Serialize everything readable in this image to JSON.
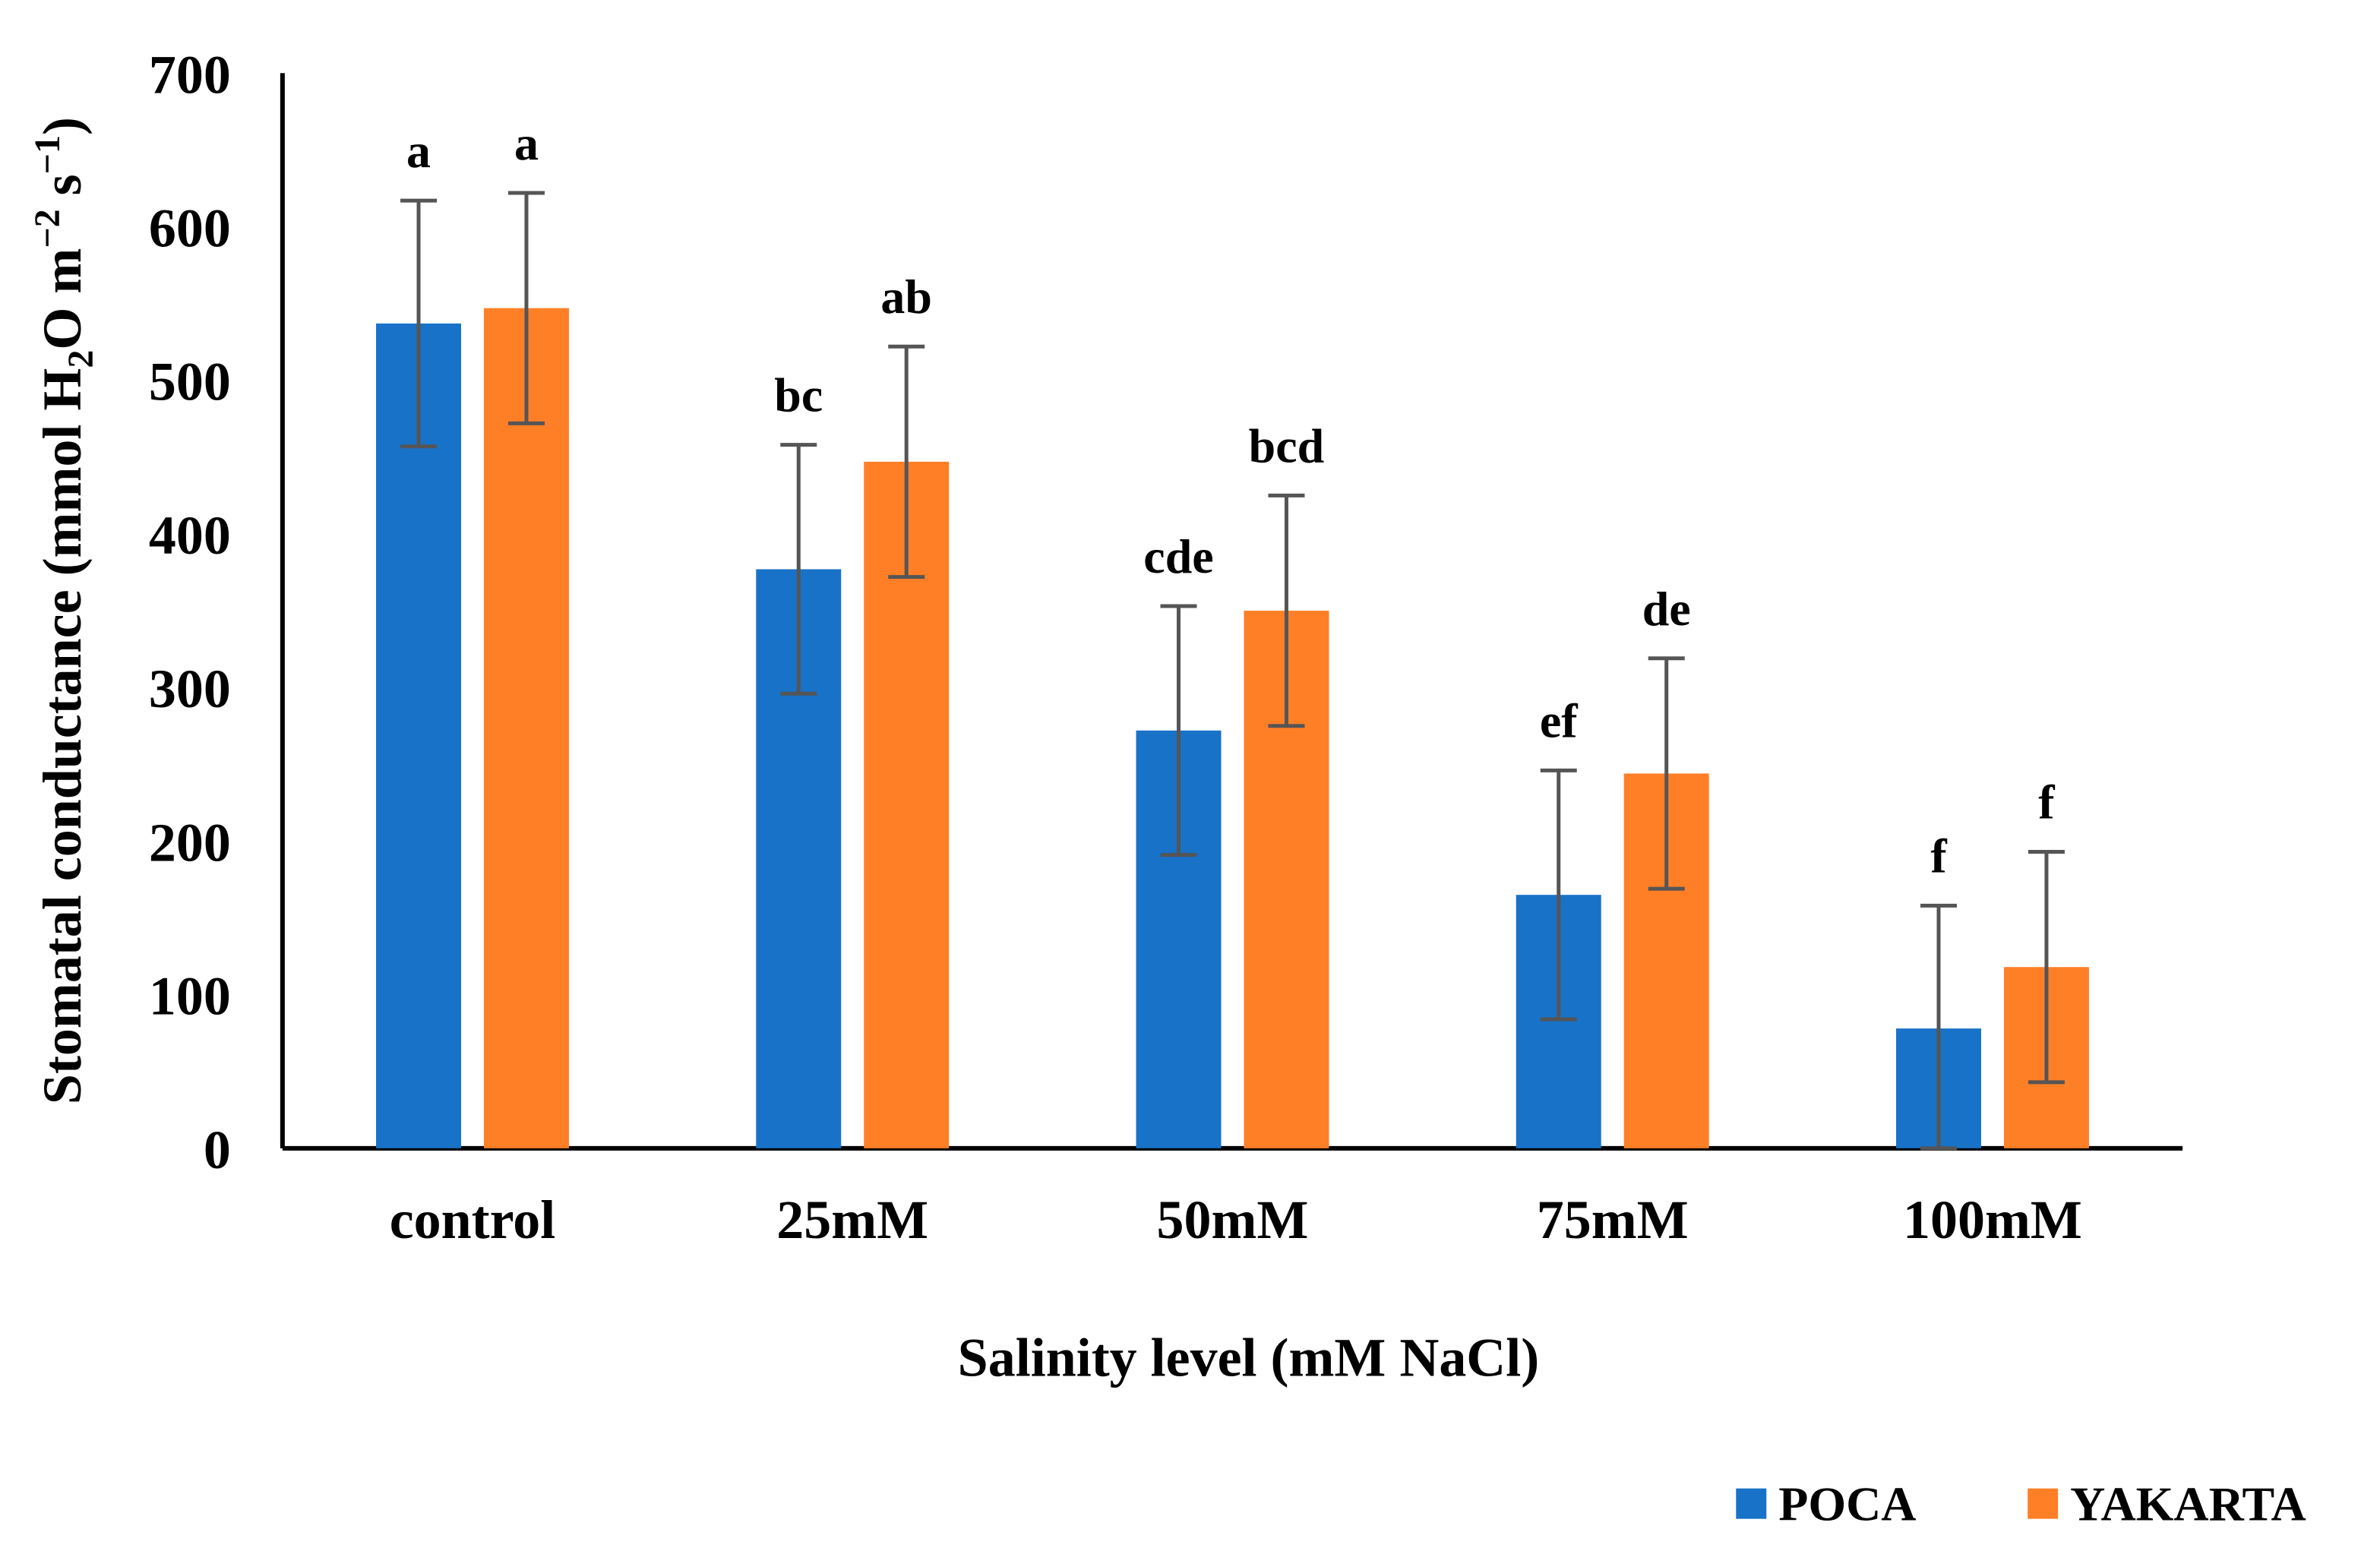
{
  "chart_data": {
    "type": "bar",
    "title": "",
    "xlabel": "Salinity level (mM NaCl)",
    "ylabel": "Stomatal conductance (mmol H2O m−2 s−1)",
    "ylabel_parts": {
      "main": "Stomatal conductance (mmol H",
      "sub": "2",
      "mid": "O m",
      "sup1": "−2",
      "mid2": " s",
      "sup2": "−1",
      "end": ")"
    },
    "ylim": [
      0,
      700
    ],
    "yticks": [
      0,
      100,
      200,
      300,
      400,
      500,
      600,
      700
    ],
    "grid": false,
    "legend_position": "bottom-right",
    "categories": [
      "control",
      "25mM",
      "50mM",
      "75mM",
      "100mM"
    ],
    "series": [
      {
        "name": "POCA",
        "color": "#1872C8",
        "values": [
          537,
          377,
          272,
          165,
          78
        ],
        "errors": [
          80,
          81,
          81,
          81,
          80
        ],
        "letters": [
          "a",
          "bc",
          "cde",
          "ef",
          "f"
        ]
      },
      {
        "name": "YAKARTA",
        "color": "#FF7F27",
        "values": [
          547,
          447,
          350,
          244,
          118
        ],
        "errors": [
          75,
          75,
          75,
          75,
          75
        ],
        "letters": [
          "a",
          "ab",
          "bcd",
          "de",
          "f"
        ]
      }
    ]
  }
}
